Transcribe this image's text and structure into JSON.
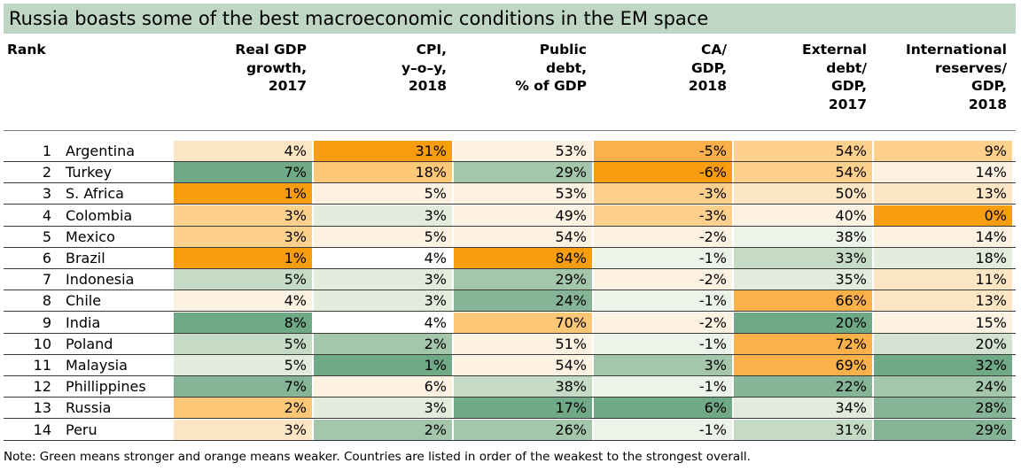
{
  "title": "Russia boasts some of the best macroeconomic conditions in the EM space",
  "note": "Note: Green means stronger and orange means weaker. Countries are listed in order of the weakest to the strongest overall.",
  "chart_data": {
    "type": "table",
    "rank_header": "Rank",
    "columns": [
      {
        "lines": [
          "Real GDP",
          "growth,",
          "2017"
        ]
      },
      {
        "lines": [
          "CPI,",
          "y–o–y,",
          "2018"
        ]
      },
      {
        "lines": [
          "Public",
          "debt,",
          "% of GDP"
        ]
      },
      {
        "lines": [
          "CA/",
          "GDP,",
          "2018"
        ]
      },
      {
        "lines": [
          "External",
          "debt/",
          "GDP,",
          "2017"
        ]
      },
      {
        "lines": [
          "International",
          "reserves/",
          "GDP,",
          "2018"
        ]
      }
    ],
    "rows": [
      {
        "rank": "1",
        "country": "Argentina",
        "values": [
          "4%",
          "31%",
          "53%",
          "-5%",
          "54%",
          "9%"
        ],
        "colors": [
          "#fde6c4",
          "#f99d10",
          "#fdf2e2",
          "#fbb149",
          "#fdd08e",
          "#fdd08e"
        ]
      },
      {
        "rank": "2",
        "country": "Turkey",
        "values": [
          "7%",
          "18%",
          "29%",
          "-6%",
          "54%",
          "14%"
        ],
        "colors": [
          "#6fa985",
          "#fcc777",
          "#a4c7ac",
          "#f99d10",
          "#fdd08e",
          "#fdf2e2"
        ]
      },
      {
        "rank": "3",
        "country": "S. Africa",
        "values": [
          "1%",
          "5%",
          "53%",
          "-3%",
          "50%",
          "13%"
        ],
        "colors": [
          "#f99d10",
          "#fdf2e2",
          "#fdf2e2",
          "#fdd08e",
          "#fde6c4",
          "#fde6c4"
        ]
      },
      {
        "rank": "4",
        "country": "Colombia",
        "values": [
          "3%",
          "3%",
          "49%",
          "-3%",
          "40%",
          "0%"
        ],
        "colors": [
          "#fdd08e",
          "#e3ebdd",
          "#fdf2e2",
          "#fdd08e",
          "#fdf2e2",
          "#f99d10"
        ]
      },
      {
        "rank": "5",
        "country": "Mexico",
        "values": [
          "3%",
          "5%",
          "54%",
          "-2%",
          "38%",
          "14%"
        ],
        "colors": [
          "#fdd08e",
          "#fdf2e2",
          "#fdf2e2",
          "#fdf2e2",
          "#eef3ea",
          "#fdf2e2"
        ]
      },
      {
        "rank": "6",
        "country": "Brazil",
        "values": [
          "1%",
          "4%",
          "84%",
          "-1%",
          "33%",
          "18%"
        ],
        "colors": [
          "#f99d10",
          "#ffffff",
          "#f99d10",
          "#eef3ea",
          "#c5dbc5",
          "#e3ebdd"
        ]
      },
      {
        "rank": "7",
        "country": "Indonesia",
        "values": [
          "5%",
          "3%",
          "29%",
          "-2%",
          "35%",
          "11%"
        ],
        "colors": [
          "#c5dbc5",
          "#e3ebdd",
          "#a4c7ac",
          "#fdf2e2",
          "#e3ebdd",
          "#fde6c4"
        ]
      },
      {
        "rank": "8",
        "country": "Chile",
        "values": [
          "4%",
          "3%",
          "24%",
          "-1%",
          "66%",
          "13%"
        ],
        "colors": [
          "#fdf2e2",
          "#e3ebdd",
          "#85b596",
          "#eef3ea",
          "#fbb149",
          "#fde6c4"
        ]
      },
      {
        "rank": "9",
        "country": "India",
        "values": [
          "8%",
          "4%",
          "70%",
          "-2%",
          "20%",
          "15%"
        ],
        "colors": [
          "#6fa985",
          "#ffffff",
          "#fcc777",
          "#fdf2e2",
          "#6fa985",
          "#fdf2e2"
        ]
      },
      {
        "rank": "10",
        "country": "Poland",
        "values": [
          "5%",
          "2%",
          "51%",
          "-1%",
          "72%",
          "20%"
        ],
        "colors": [
          "#c5dbc5",
          "#a4c7ac",
          "#fdf2e2",
          "#eef3ea",
          "#fbb149",
          "#d3e2d1"
        ]
      },
      {
        "rank": "11",
        "country": "Malaysia",
        "values": [
          "5%",
          "1%",
          "54%",
          "3%",
          "69%",
          "32%"
        ],
        "colors": [
          "#e3ebdd",
          "#6fa985",
          "#fdf2e2",
          "#a4c7ac",
          "#fbb149",
          "#6fa985"
        ]
      },
      {
        "rank": "12",
        "country": "Phillippines",
        "values": [
          "7%",
          "6%",
          "38%",
          "-1%",
          "22%",
          "24%"
        ],
        "colors": [
          "#85b596",
          "#fdf2e2",
          "#c5dbc5",
          "#eef3ea",
          "#85b596",
          "#a4c7ac"
        ]
      },
      {
        "rank": "13",
        "country": "Russia",
        "values": [
          "2%",
          "3%",
          "17%",
          "6%",
          "34%",
          "28%"
        ],
        "colors": [
          "#fcc777",
          "#e3ebdd",
          "#6fa985",
          "#6fa985",
          "#e3ebdd",
          "#85b596"
        ]
      },
      {
        "rank": "14",
        "country": "Peru",
        "values": [
          "3%",
          "2%",
          "26%",
          "-1%",
          "31%",
          "29%"
        ],
        "colors": [
          "#fde6c4",
          "#a4c7ac",
          "#a4c7ac",
          "#eef3ea",
          "#c5dbc5",
          "#85b596"
        ]
      }
    ]
  }
}
